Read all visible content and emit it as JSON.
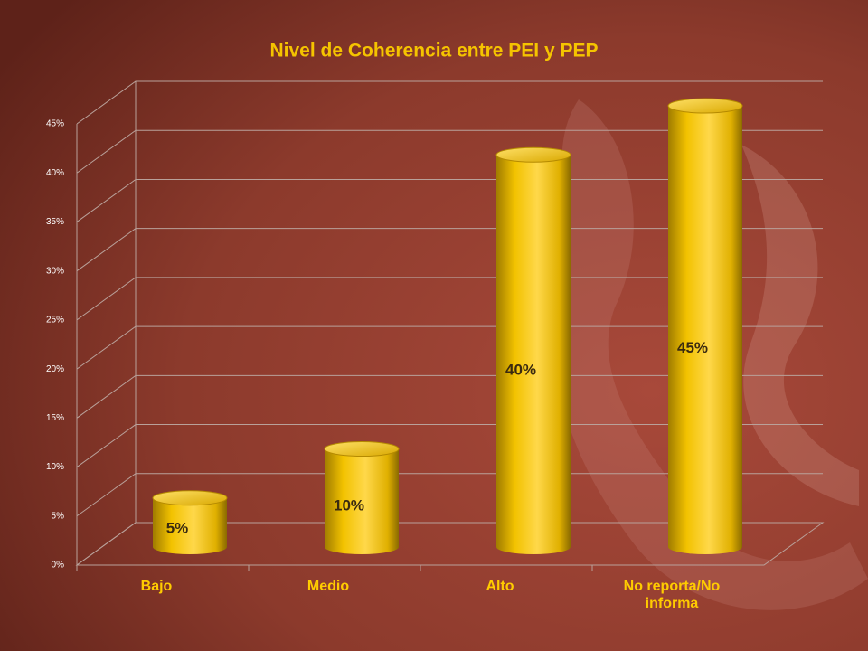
{
  "chart_data": {
    "type": "bar3d",
    "title": "Nivel de Coherencia entre PEI y PEP",
    "categories": [
      "Bajo",
      "Medio",
      "Alto",
      "No reporta/No informa"
    ],
    "values": [
      5,
      10,
      40,
      45
    ],
    "value_labels": [
      "5%",
      "10%",
      "40%",
      "45%"
    ],
    "color": "#ffcc00",
    "ylim": [
      0,
      45
    ],
    "yticks": [
      {
        "value": 0,
        "label": "0%"
      },
      {
        "value": 5,
        "label": "5%"
      },
      {
        "value": 10,
        "label": "10%"
      },
      {
        "value": 15,
        "label": "15%"
      },
      {
        "value": 20,
        "label": "20%"
      },
      {
        "value": 25,
        "label": "25%"
      },
      {
        "value": 30,
        "label": "30%"
      },
      {
        "value": 35,
        "label": "35%"
      },
      {
        "value": 40,
        "label": "40%"
      },
      {
        "value": 45,
        "label": "45%"
      }
    ],
    "grid": true
  }
}
